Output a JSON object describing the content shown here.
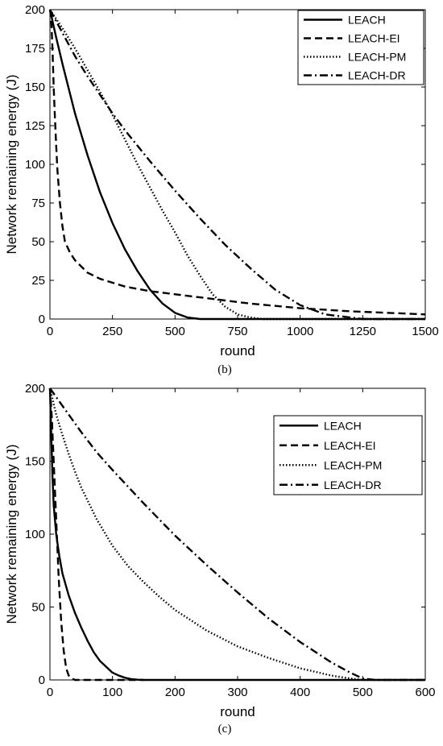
{
  "chart_data": [
    {
      "type": "line",
      "panel_label": "(b)",
      "xlabel": "round",
      "ylabel": "Network remaining energy (J)",
      "xlim": [
        0,
        1500
      ],
      "ylim": [
        0,
        200
      ],
      "x_ticks": [
        0,
        250,
        500,
        750,
        1000,
        1250,
        1500
      ],
      "y_ticks": [
        0,
        25,
        50,
        75,
        100,
        125,
        150,
        175,
        200
      ],
      "grid": false,
      "legend_position": "top-right",
      "series": [
        {
          "name": "LEACH",
          "style": "solid",
          "x": [
            0,
            25,
            50,
            100,
            150,
            200,
            250,
            300,
            350,
            400,
            450,
            500,
            550,
            600,
            650,
            750,
            1000,
            1250,
            1500
          ],
          "y": [
            200,
            182,
            165,
            133,
            106,
            82,
            62,
            45,
            31,
            19,
            10,
            4,
            1,
            0,
            0,
            0,
            0,
            0,
            0
          ]
        },
        {
          "name": "LEACH-EI",
          "style": "dashed",
          "x": [
            0,
            5,
            10,
            15,
            20,
            25,
            30,
            40,
            50,
            60,
            80,
            100,
            150,
            200,
            300,
            400,
            600,
            800,
            1000,
            1200,
            1500
          ],
          "y": [
            200,
            195,
            175,
            150,
            130,
            112,
            96,
            75,
            60,
            50,
            43,
            38,
            30,
            26,
            21,
            18,
            14,
            10,
            7,
            5,
            3
          ]
        },
        {
          "name": "LEACH-PM",
          "style": "dotted",
          "x": [
            0,
            50,
            100,
            150,
            200,
            250,
            300,
            350,
            400,
            450,
            500,
            550,
            600,
            650,
            700,
            750,
            800,
            850,
            900,
            1000,
            1500
          ],
          "y": [
            200,
            188,
            175,
            161,
            147,
            132,
            116,
            100,
            85,
            70,
            56,
            41,
            28,
            16,
            8,
            3,
            1,
            0,
            0,
            0,
            0
          ]
        },
        {
          "name": "LEACH-DR",
          "style": "dashdot",
          "x": [
            0,
            50,
            100,
            150,
            200,
            250,
            300,
            400,
            500,
            600,
            700,
            800,
            900,
            1000,
            1100,
            1200,
            1250,
            1300,
            1500
          ],
          "y": [
            200,
            185,
            170,
            157,
            145,
            133,
            122,
            102,
            83,
            65,
            48,
            33,
            19,
            9,
            3,
            1,
            0,
            0,
            0
          ]
        }
      ]
    },
    {
      "type": "line",
      "panel_label": "(c)",
      "xlabel": "round",
      "ylabel": "Network remaining energy (J)",
      "xlim": [
        0,
        600
      ],
      "ylim": [
        0,
        200
      ],
      "x_ticks": [
        0,
        100,
        200,
        300,
        400,
        500,
        600
      ],
      "y_ticks": [
        0,
        50,
        100,
        150,
        200
      ],
      "grid": false,
      "legend_position": "top-right",
      "series": [
        {
          "name": "LEACH",
          "style": "solid",
          "x": [
            0,
            2,
            4,
            6,
            10,
            15,
            20,
            30,
            40,
            50,
            60,
            70,
            80,
            90,
            100,
            110,
            120,
            130,
            140,
            150,
            170,
            200,
            300,
            400,
            500,
            600
          ],
          "y": [
            200,
            170,
            140,
            120,
            100,
            85,
            73,
            58,
            46,
            36,
            27,
            19,
            13,
            9,
            5,
            3,
            1.5,
            0.6,
            0.2,
            0,
            0,
            0,
            0,
            0,
            0,
            0
          ]
        },
        {
          "name": "LEACH-EI",
          "style": "dashed",
          "x": [
            0,
            3,
            6,
            10,
            14,
            18,
            22,
            26,
            30,
            35,
            40,
            50,
            100,
            150
          ],
          "y": [
            200,
            180,
            150,
            110,
            70,
            40,
            20,
            8,
            3,
            1,
            0,
            0,
            0,
            0
          ]
        },
        {
          "name": "LEACH-PM",
          "style": "dotted",
          "x": [
            0,
            10,
            20,
            30,
            40,
            50,
            75,
            100,
            125,
            150,
            175,
            200,
            250,
            300,
            350,
            400,
            450,
            480,
            500,
            520,
            550,
            600
          ],
          "y": [
            200,
            182,
            168,
            155,
            143,
            132,
            110,
            92,
            78,
            67,
            57,
            48,
            34,
            23,
            15,
            8,
            3,
            1,
            0,
            0,
            0,
            0
          ]
        },
        {
          "name": "LEACH-DR",
          "style": "dashdot",
          "x": [
            0,
            25,
            50,
            75,
            100,
            150,
            200,
            250,
            300,
            350,
            400,
            450,
            480,
            500,
            520,
            550,
            600
          ],
          "y": [
            200,
            185,
            170,
            156,
            144,
            121,
            99,
            79,
            60,
            42,
            26,
            12,
            5,
            1,
            0,
            0,
            0
          ]
        }
      ]
    }
  ]
}
